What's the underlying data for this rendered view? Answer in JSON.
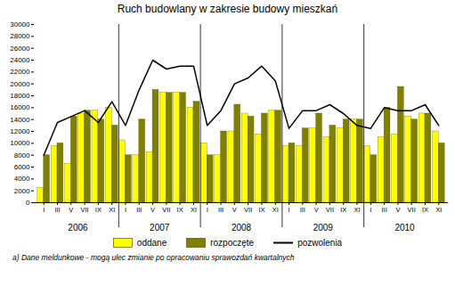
{
  "chart_data": {
    "type": "bar",
    "title": "Ruch budowlany w zakresie budowy mieszkań",
    "annotations": [
      "2006",
      "2007",
      "2008",
      "2009",
      "2010"
    ],
    "footnote": "a)   Dane meldunkowe - mogą ulec zmianie po opracowaniu sprawozdań kwartalnych",
    "categories": [
      "I",
      "III",
      "V",
      "VII",
      "IX",
      "XI",
      "I",
      "III",
      "V",
      "VII",
      "IX",
      "XI",
      "I",
      "III",
      "V",
      "VII",
      "IX",
      "XI",
      "I",
      "III",
      "V",
      "VII",
      "IX",
      "XI",
      "I",
      "III",
      "V",
      "VII",
      "IX",
      "XI"
    ],
    "series": [
      {
        "name": "oddane",
        "type": "bar",
        "color": "#ffff00",
        "values": [
          2500,
          9500,
          6500,
          15000,
          15500,
          16000,
          10500,
          8000,
          8500,
          18500,
          18500,
          16000,
          10000,
          8000,
          12000,
          15000,
          11500,
          15500,
          9500,
          9500,
          12500,
          11000,
          12500,
          14000,
          9500,
          11000,
          11500,
          14500,
          15000,
          12000
        ]
      },
      {
        "name": "rozpoczęte",
        "type": "bar",
        "color": "#808000",
        "values": [
          8000,
          10000,
          14500,
          15500,
          14000,
          13000,
          8000,
          14000,
          19000,
          18500,
          18500,
          17000,
          8000,
          12000,
          16500,
          14500,
          15000,
          15500,
          10000,
          12500,
          15000,
          13000,
          14000,
          14000,
          8000,
          16000,
          19500,
          14000,
          15000,
          10000
        ]
      },
      {
        "name": "pozwolenia",
        "type": "line",
        "color": "#000000",
        "values": [
          8000,
          13500,
          14500,
          15500,
          13500,
          17000,
          13000,
          19000,
          24000,
          22500,
          23000,
          23000,
          13000,
          15500,
          20000,
          21000,
          23000,
          20500,
          12500,
          15500,
          15500,
          16500,
          15000,
          13000,
          12500,
          16000,
          15500,
          15500,
          16500,
          13000
        ]
      }
    ],
    "ylim": [
      0,
      30000
    ],
    "yticks": [
      0,
      2000,
      4000,
      6000,
      8000,
      10000,
      12000,
      14000,
      16000,
      18000,
      20000,
      22000,
      24000,
      26000,
      28000,
      30000
    ],
    "grid": false,
    "legend": "bottom"
  }
}
